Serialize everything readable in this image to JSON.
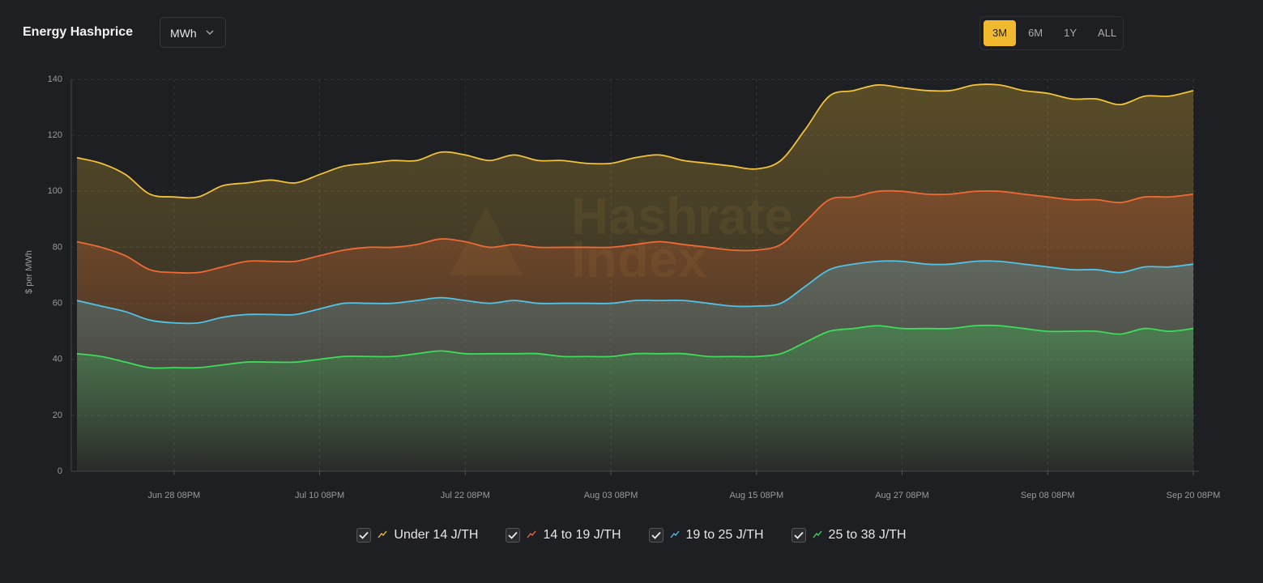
{
  "header": {
    "title": "Energy Hashprice",
    "unit_select": "MWh",
    "ranges": [
      "3M",
      "6M",
      "1Y",
      "ALL"
    ],
    "selected_range": "3M"
  },
  "watermark": [
    "Hashrate",
    "Index"
  ],
  "chart_data": {
    "type": "line",
    "area": true,
    "grid": true,
    "y_label": "$ per MWh",
    "categories": [
      null,
      null,
      null,
      null,
      "Jun 28 08PM",
      null,
      null,
      null,
      null,
      null,
      "Jul 10 08PM",
      null,
      null,
      null,
      null,
      null,
      "Jul 22 08PM",
      null,
      null,
      null,
      null,
      null,
      "Aug 03 08PM",
      null,
      null,
      null,
      null,
      null,
      "Aug 15 08PM",
      null,
      null,
      null,
      null,
      null,
      "Aug 27 08PM",
      null,
      null,
      null,
      null,
      null,
      "Sep 08 08PM",
      null,
      null,
      null,
      null,
      null,
      "Sep 20 08PM"
    ],
    "ylim": [
      0,
      140
    ],
    "yticks": [
      0,
      20,
      40,
      60,
      80,
      100,
      120,
      140
    ],
    "series": [
      {
        "name": "Under 14 J/TH",
        "color": "#f2c23a",
        "values": [
          112,
          110,
          106,
          99,
          98,
          98,
          102,
          103,
          104,
          103,
          106,
          109,
          110,
          111,
          111,
          114,
          113,
          111,
          113,
          111,
          111,
          110,
          110,
          112,
          113,
          111,
          110,
          109,
          108,
          111,
          122,
          134,
          136,
          138,
          137,
          136,
          136,
          138,
          138,
          136,
          135,
          133,
          133,
          131,
          134,
          134,
          136
        ]
      },
      {
        "name": "14 to 19 J/TH",
        "color": "#f06a35",
        "values": [
          82,
          80,
          77,
          72,
          71,
          71,
          73,
          75,
          75,
          75,
          77,
          79,
          80,
          80,
          81,
          83,
          82,
          80,
          81,
          80,
          80,
          80,
          80,
          81,
          82,
          81,
          80,
          79,
          79,
          81,
          89,
          97,
          98,
          100,
          100,
          99,
          99,
          100,
          100,
          99,
          98,
          97,
          97,
          96,
          98,
          98,
          99
        ]
      },
      {
        "name": "19 to 25 J/TH",
        "color": "#4fc3e8",
        "values": [
          61,
          59,
          57,
          54,
          53,
          53,
          55,
          56,
          56,
          56,
          58,
          60,
          60,
          60,
          61,
          62,
          61,
          60,
          61,
          60,
          60,
          60,
          60,
          61,
          61,
          61,
          60,
          59,
          59,
          60,
          66,
          72,
          74,
          75,
          75,
          74,
          74,
          75,
          75,
          74,
          73,
          72,
          72,
          71,
          73,
          73,
          74
        ]
      },
      {
        "name": "25 to 38 J/TH",
        "color": "#3ddc5a",
        "values": [
          42,
          41,
          39,
          37,
          37,
          37,
          38,
          39,
          39,
          39,
          40,
          41,
          41,
          41,
          42,
          43,
          42,
          42,
          42,
          42,
          41,
          41,
          41,
          42,
          42,
          42,
          41,
          41,
          41,
          42,
          46,
          50,
          51,
          52,
          51,
          51,
          51,
          52,
          52,
          51,
          50,
          50,
          50,
          49,
          51,
          50,
          51
        ]
      }
    ]
  }
}
